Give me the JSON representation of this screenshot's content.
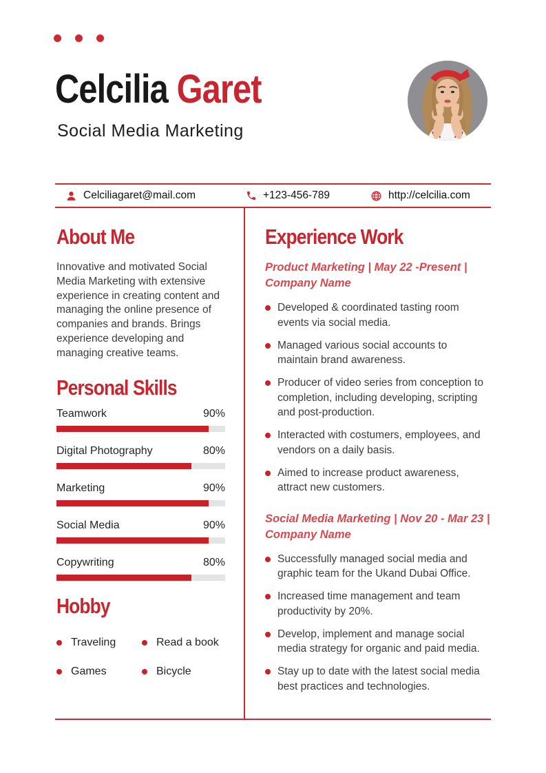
{
  "header": {
    "name_first": "Celcilia ",
    "name_last": "Garet",
    "subtitle": "Social Media Marketing"
  },
  "contact": {
    "email": "Celciliagaret@mail.com",
    "phone": "+123-456-789",
    "website": "http://celcilia.com"
  },
  "about": {
    "heading": "About Me",
    "text": "Innovative and motivated Social Media Marketing with extensive experience in creating content and managing the online presence of companies and brands. Brings experience developing and managing creative teams."
  },
  "skills": {
    "heading": "Personal Skills",
    "items": [
      {
        "label": "Teamwork",
        "percent_label": "90%",
        "value": 90
      },
      {
        "label": "Digital Photography",
        "percent_label": "80%",
        "value": 80
      },
      {
        "label": "Marketing",
        "percent_label": "90%",
        "value": 90
      },
      {
        "label": "Social Media",
        "percent_label": "90%",
        "value": 90
      },
      {
        "label": "Copywriting",
        "percent_label": "80%",
        "value": 80
      }
    ]
  },
  "hobby": {
    "heading": "Hobby",
    "items": [
      "Traveling",
      "Read a book",
      "Games",
      "Bicycle"
    ]
  },
  "experience": {
    "heading": "Experience Work",
    "jobs": [
      {
        "title": "Product Marketing | May 22 -Present | Company Name",
        "bullets": [
          "Developed & coordinated tasting room events via social media.",
          "Managed various social accounts to maintain brand awareness.",
          "Producer of video series from conception to completion, including developing, scripting and post-production.",
          "Interacted with costumers, employees, and vendors on a daily basis.",
          "Aimed to increase product awareness, attract new customers."
        ]
      },
      {
        "title": "Social Media Marketing | Nov 20 - Mar 23 | Company Name",
        "bullets": [
          "Successfully managed social media and graphic team for the Ukand Dubai Office.",
          "Increased time management and team productivity by 20%.",
          "Develop, implement and manage social media strategy for organic and paid media.",
          "Stay up to date with the latest social media best practices and technologies."
        ]
      }
    ]
  },
  "colors": {
    "accent": "#c5262f",
    "accent-line": "#cb2a32",
    "accent-light": "#d7494f",
    "bar": "#ca2128",
    "track": "#e4e4e4",
    "ink": "#191919",
    "body": "#3c3c3c",
    "photo-bg": "#8e8e93"
  }
}
